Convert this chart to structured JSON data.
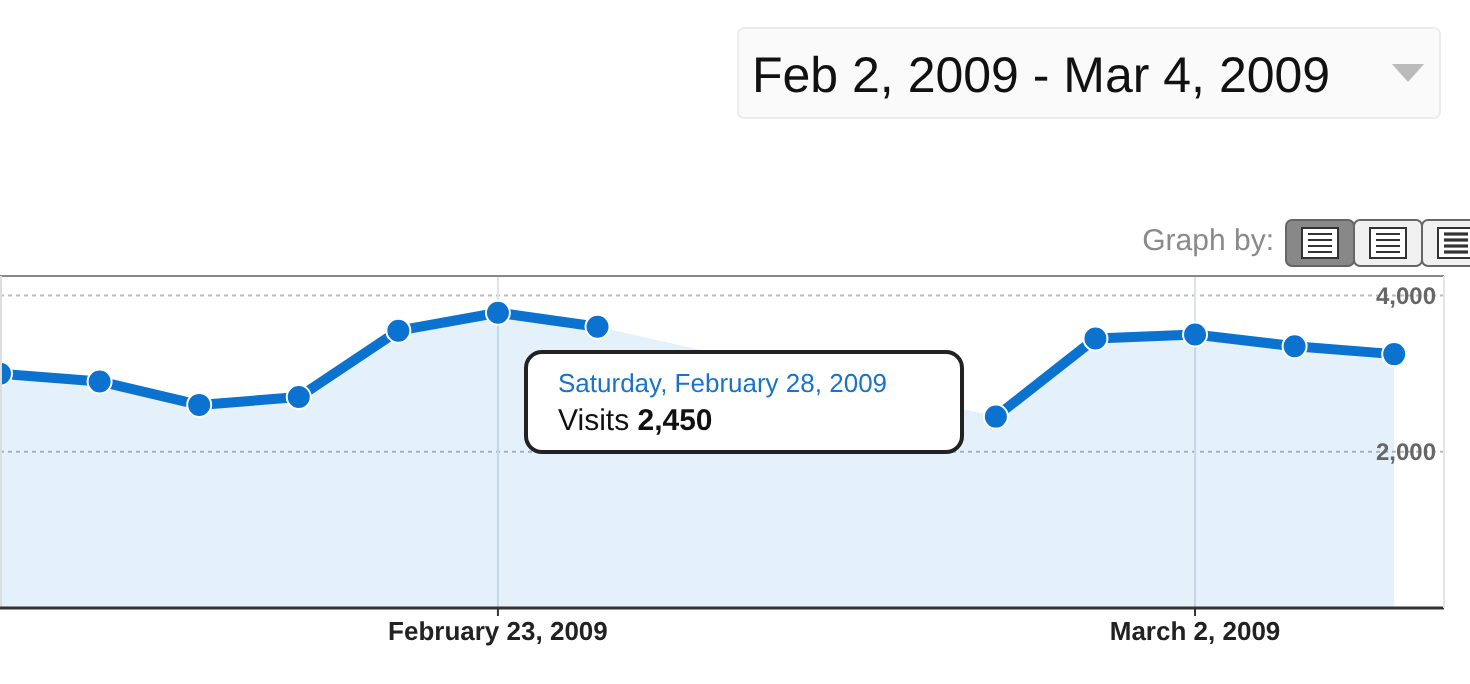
{
  "chart_data": {
    "type": "area",
    "title": "Feb 2, 2009 - Mar 4, 2009",
    "x": [
      "2009-02-18",
      "2009-02-19",
      "2009-02-20",
      "2009-02-21",
      "2009-02-22",
      "2009-02-23",
      "2009-02-24",
      "2009-02-25",
      "2009-02-26",
      "2009-02-27",
      "2009-02-28",
      "2009-03-01",
      "2009-03-02",
      "2009-03-03",
      "2009-03-04"
    ],
    "series": [
      {
        "color": "#0b72d0",
        "values": [
          3000,
          2900,
          2600,
          2700,
          3550,
          3780,
          3600,
          null,
          null,
          null,
          2450,
          3450,
          3500,
          3350,
          3250
        ]
      }
    ],
    "xlim": [
      "2009-02-18",
      "2009-03-04T12:00"
    ],
    "xticks": [
      {
        "value": "2009-02-23",
        "label": "February 23, 2009"
      },
      {
        "value": "2009-03-02",
        "label": "March 2, 2009"
      }
    ],
    "ylim": [
      0,
      4250
    ],
    "yticks": [
      {
        "value": 2000,
        "label": "2,000"
      },
      {
        "value": 4000,
        "label": "4,000"
      }
    ],
    "grid": true,
    "marker": "circle",
    "annotations": [
      "Graph by:",
      "Saturday, February 28, 2009",
      "Visits 2,450"
    ]
  }
}
